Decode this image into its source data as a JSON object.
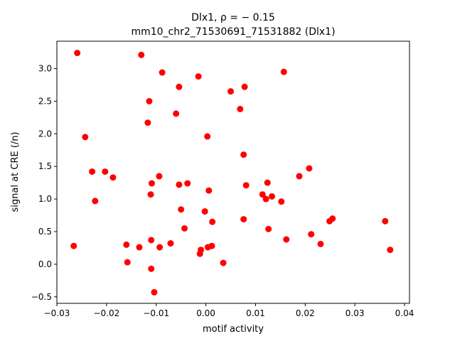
{
  "chart_data": {
    "type": "scatter",
    "title": "Dlx1, ρ = − 0.15",
    "subtitle": "mm10_chr2_71530691_71531882 (Dlx1)",
    "xlabel": "motif activity",
    "ylabel": "signal at CRE (/n)",
    "xlim": [
      -0.03,
      0.041
    ],
    "ylim": [
      -0.6,
      3.42
    ],
    "xticks": [
      -0.03,
      -0.02,
      -0.01,
      0.0,
      0.01,
      0.02,
      0.03,
      0.04
    ],
    "xtick_labels": [
      "−0.03",
      "−0.02",
      "−0.01",
      "0.00",
      "0.01",
      "0.02",
      "0.03",
      "0.04"
    ],
    "yticks": [
      -0.5,
      0.0,
      0.5,
      1.0,
      1.5,
      2.0,
      2.5,
      3.0
    ],
    "ytick_labels": [
      "−0.5",
      "0.0",
      "0.5",
      "1.0",
      "1.5",
      "2.0",
      "2.5",
      "3.0"
    ],
    "grid": false,
    "marker_color": "#ff0000",
    "points": [
      {
        "x": -0.0259,
        "y": 3.24
      },
      {
        "x": -0.013,
        "y": 3.21
      },
      {
        "x": -0.0088,
        "y": 2.94
      },
      {
        "x": -0.0015,
        "y": 2.88
      },
      {
        "x": 0.0157,
        "y": 2.95
      },
      {
        "x": -0.0054,
        "y": 2.72
      },
      {
        "x": 0.0078,
        "y": 2.72
      },
      {
        "x": 0.005,
        "y": 2.65
      },
      {
        "x": -0.0114,
        "y": 2.5
      },
      {
        "x": 0.0069,
        "y": 2.38
      },
      {
        "x": -0.006,
        "y": 2.31
      },
      {
        "x": -0.0117,
        "y": 2.17
      },
      {
        "x": -0.0243,
        "y": 1.95
      },
      {
        "x": 0.0003,
        "y": 1.96
      },
      {
        "x": 0.0076,
        "y": 1.68
      },
      {
        "x": 0.0208,
        "y": 1.47
      },
      {
        "x": -0.0229,
        "y": 1.42
      },
      {
        "x": -0.0203,
        "y": 1.42
      },
      {
        "x": -0.0187,
        "y": 1.33
      },
      {
        "x": -0.0094,
        "y": 1.35
      },
      {
        "x": 0.0188,
        "y": 1.35
      },
      {
        "x": -0.0109,
        "y": 1.24
      },
      {
        "x": -0.0037,
        "y": 1.24
      },
      {
        "x": -0.0054,
        "y": 1.22
      },
      {
        "x": 0.0124,
        "y": 1.25
      },
      {
        "x": 0.0081,
        "y": 1.21
      },
      {
        "x": 0.0006,
        "y": 1.13
      },
      {
        "x": -0.0111,
        "y": 1.07
      },
      {
        "x": 0.0114,
        "y": 1.07
      },
      {
        "x": 0.0133,
        "y": 1.04
      },
      {
        "x": 0.0121,
        "y": 1.0
      },
      {
        "x": -0.0223,
        "y": 0.97
      },
      {
        "x": 0.0152,
        "y": 0.96
      },
      {
        "x": -0.005,
        "y": 0.84
      },
      {
        "x": -0.0002,
        "y": 0.81
      },
      {
        "x": 0.0076,
        "y": 0.69
      },
      {
        "x": 0.0255,
        "y": 0.7
      },
      {
        "x": 0.0013,
        "y": 0.65
      },
      {
        "x": 0.0249,
        "y": 0.66
      },
      {
        "x": 0.0361,
        "y": 0.66
      },
      {
        "x": -0.0043,
        "y": 0.55
      },
      {
        "x": 0.0126,
        "y": 0.54
      },
      {
        "x": 0.0212,
        "y": 0.46
      },
      {
        "x": -0.011,
        "y": 0.37
      },
      {
        "x": 0.0162,
        "y": 0.38
      },
      {
        "x": -0.0071,
        "y": 0.32
      },
      {
        "x": 0.0231,
        "y": 0.31
      },
      {
        "x": -0.0266,
        "y": 0.28
      },
      {
        "x": -0.016,
        "y": 0.3
      },
      {
        "x": -0.0134,
        "y": 0.26
      },
      {
        "x": -0.0093,
        "y": 0.26
      },
      {
        "x": 0.0004,
        "y": 0.26
      },
      {
        "x": 0.0012,
        "y": 0.28
      },
      {
        "x": -0.001,
        "y": 0.22
      },
      {
        "x": 0.0371,
        "y": 0.22
      },
      {
        "x": -0.0012,
        "y": 0.16
      },
      {
        "x": -0.0158,
        "y": 0.03
      },
      {
        "x": 0.0035,
        "y": 0.02
      },
      {
        "x": -0.011,
        "y": -0.07
      },
      {
        "x": -0.0104,
        "y": -0.43
      }
    ]
  }
}
